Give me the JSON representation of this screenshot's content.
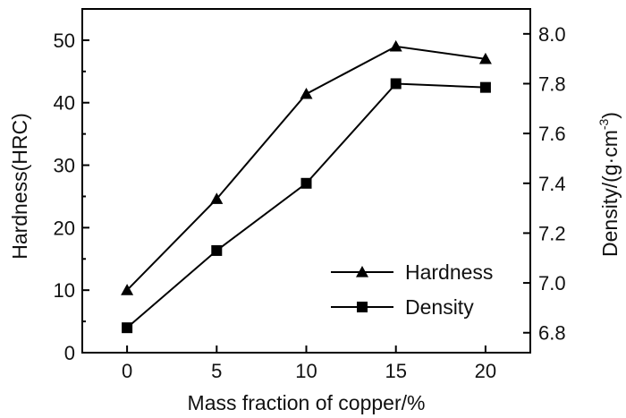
{
  "chart_data": {
    "type": "line",
    "xlabel": "Mass fraction of copper/%",
    "x": [
      0,
      5,
      10,
      15,
      20
    ],
    "x_ticks": [
      0,
      5,
      10,
      15,
      20
    ],
    "xlim": [
      -2.5,
      22.5
    ],
    "y_left": {
      "label": "Hardness(HRC)",
      "lim": [
        0,
        55
      ],
      "ticks": [
        0,
        10,
        20,
        30,
        40,
        50
      ]
    },
    "y_right": {
      "label": "Density/(g·cm",
      "label_sup": "-3",
      "label_end": ")",
      "lim": [
        6.72,
        8.1
      ],
      "ticks": [
        "6.8",
        "7.0",
        "7.2",
        "7.4",
        "7.6",
        "7.8",
        "8.0"
      ]
    },
    "series": [
      {
        "name": "Hardness",
        "axis": "left",
        "marker": "triangle",
        "values": [
          10.0,
          24.6,
          41.4,
          49.0,
          47.0
        ]
      },
      {
        "name": "Density",
        "axis": "right",
        "marker": "square",
        "values": [
          6.82,
          7.13,
          7.4,
          7.8,
          7.785
        ]
      }
    ],
    "legend": {
      "position": "bottom-right"
    },
    "grid": false
  }
}
